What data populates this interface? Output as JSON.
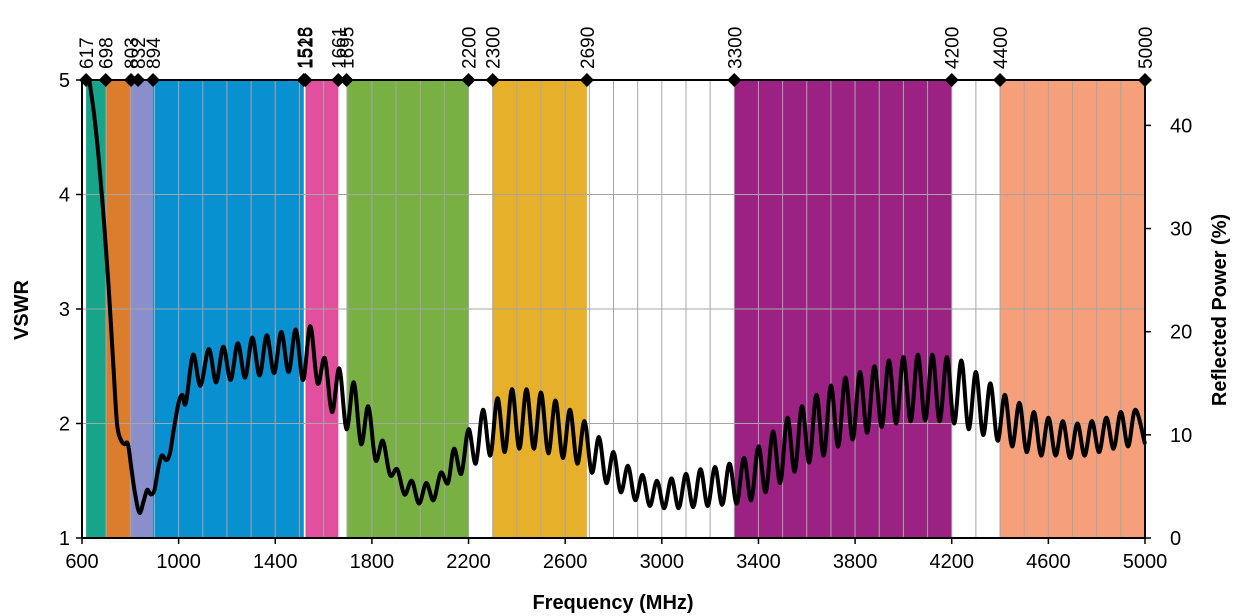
{
  "chart_data": {
    "type": "line",
    "title": "",
    "xlabel": "Frequency (MHz)",
    "ylabel": "VSWR",
    "y2label": "Reflected Power (%)",
    "xlim": [
      600,
      5000
    ],
    "ylim": [
      1,
      5
    ],
    "y2lim": [
      0,
      44.4
    ],
    "grid": true,
    "x_ticks": [
      600,
      1000,
      1400,
      1800,
      2200,
      2600,
      3000,
      3400,
      3800,
      4200,
      4600,
      5000
    ],
    "y_ticks": [
      1,
      2,
      3,
      4,
      5
    ],
    "y2_ticks": [
      0,
      10,
      20,
      30,
      40
    ],
    "top_markers": [
      617,
      698,
      803,
      832,
      894,
      1518,
      1525,
      1661,
      1695,
      2200,
      2300,
      2690,
      3300,
      4200,
      4400,
      5000
    ],
    "bands": [
      {
        "from": 617,
        "to": 698,
        "color": "#16A58A"
      },
      {
        "from": 698,
        "to": 803,
        "color": "#DC7D2E"
      },
      {
        "from": 803,
        "to": 894,
        "color": "#8A8ECA"
      },
      {
        "from": 894,
        "to": 1518,
        "color": "#0890D0"
      },
      {
        "from": 1525,
        "to": 1661,
        "color": "#E24F9C"
      },
      {
        "from": 1695,
        "to": 2200,
        "color": "#78B043"
      },
      {
        "from": 2300,
        "to": 2690,
        "color": "#E7B02A"
      },
      {
        "from": 3300,
        "to": 4200,
        "color": "#9B2183"
      },
      {
        "from": 4400,
        "to": 5000,
        "color": "#F5A07B"
      }
    ],
    "series": [
      {
        "color": "#000000",
        "points": [
          [
            630,
            5.0
          ],
          [
            650,
            4.7
          ],
          [
            670,
            4.3
          ],
          [
            690,
            3.8
          ],
          [
            710,
            3.2
          ],
          [
            730,
            2.5
          ],
          [
            745,
            2.0
          ],
          [
            760,
            1.86
          ],
          [
            775,
            1.82
          ],
          [
            790,
            1.82
          ],
          [
            805,
            1.6
          ],
          [
            820,
            1.38
          ],
          [
            838,
            1.22
          ],
          [
            855,
            1.32
          ],
          [
            870,
            1.42
          ],
          [
            885,
            1.38
          ],
          [
            900,
            1.42
          ],
          [
            915,
            1.6
          ],
          [
            930,
            1.72
          ],
          [
            950,
            1.68
          ],
          [
            965,
            1.75
          ],
          [
            980,
            1.95
          ],
          [
            1000,
            2.18
          ],
          [
            1015,
            2.25
          ],
          [
            1030,
            2.18
          ],
          [
            1060,
            2.6
          ],
          [
            1090,
            2.33
          ],
          [
            1125,
            2.65
          ],
          [
            1155,
            2.36
          ],
          [
            1185,
            2.67
          ],
          [
            1215,
            2.38
          ],
          [
            1245,
            2.7
          ],
          [
            1275,
            2.4
          ],
          [
            1305,
            2.75
          ],
          [
            1335,
            2.42
          ],
          [
            1365,
            2.77
          ],
          [
            1395,
            2.44
          ],
          [
            1425,
            2.8
          ],
          [
            1455,
            2.45
          ],
          [
            1485,
            2.82
          ],
          [
            1515,
            2.38
          ],
          [
            1545,
            2.85
          ],
          [
            1575,
            2.35
          ],
          [
            1605,
            2.57
          ],
          [
            1635,
            2.1
          ],
          [
            1665,
            2.48
          ],
          [
            1695,
            1.95
          ],
          [
            1725,
            2.36
          ],
          [
            1755,
            1.82
          ],
          [
            1785,
            2.15
          ],
          [
            1815,
            1.68
          ],
          [
            1845,
            1.85
          ],
          [
            1875,
            1.55
          ],
          [
            1905,
            1.6
          ],
          [
            1935,
            1.38
          ],
          [
            1965,
            1.5
          ],
          [
            1995,
            1.3
          ],
          [
            2025,
            1.48
          ],
          [
            2055,
            1.33
          ],
          [
            2085,
            1.57
          ],
          [
            2115,
            1.48
          ],
          [
            2140,
            1.78
          ],
          [
            2170,
            1.56
          ],
          [
            2200,
            1.95
          ],
          [
            2230,
            1.65
          ],
          [
            2260,
            2.12
          ],
          [
            2290,
            1.72
          ],
          [
            2320,
            2.22
          ],
          [
            2350,
            1.75
          ],
          [
            2380,
            2.3
          ],
          [
            2410,
            1.78
          ],
          [
            2440,
            2.3
          ],
          [
            2470,
            1.78
          ],
          [
            2500,
            2.27
          ],
          [
            2530,
            1.74
          ],
          [
            2560,
            2.2
          ],
          [
            2590,
            1.7
          ],
          [
            2620,
            2.12
          ],
          [
            2650,
            1.65
          ],
          [
            2680,
            2.02
          ],
          [
            2710,
            1.57
          ],
          [
            2740,
            1.88
          ],
          [
            2770,
            1.48
          ],
          [
            2800,
            1.75
          ],
          [
            2830,
            1.4
          ],
          [
            2860,
            1.63
          ],
          [
            2890,
            1.33
          ],
          [
            2920,
            1.55
          ],
          [
            2950,
            1.28
          ],
          [
            2980,
            1.5
          ],
          [
            3010,
            1.26
          ],
          [
            3040,
            1.52
          ],
          [
            3070,
            1.26
          ],
          [
            3100,
            1.56
          ],
          [
            3130,
            1.27
          ],
          [
            3160,
            1.6
          ],
          [
            3190,
            1.28
          ],
          [
            3220,
            1.62
          ],
          [
            3250,
            1.29
          ],
          [
            3280,
            1.65
          ],
          [
            3310,
            1.3
          ],
          [
            3340,
            1.7
          ],
          [
            3370,
            1.33
          ],
          [
            3400,
            1.8
          ],
          [
            3430,
            1.4
          ],
          [
            3460,
            1.93
          ],
          [
            3490,
            1.48
          ],
          [
            3520,
            2.05
          ],
          [
            3550,
            1.58
          ],
          [
            3580,
            2.15
          ],
          [
            3610,
            1.66
          ],
          [
            3640,
            2.25
          ],
          [
            3670,
            1.72
          ],
          [
            3700,
            2.33
          ],
          [
            3730,
            1.8
          ],
          [
            3760,
            2.4
          ],
          [
            3790,
            1.86
          ],
          [
            3820,
            2.45
          ],
          [
            3850,
            1.92
          ],
          [
            3880,
            2.5
          ],
          [
            3910,
            1.97
          ],
          [
            3940,
            2.55
          ],
          [
            3970,
            2.0
          ],
          [
            4000,
            2.58
          ],
          [
            4030,
            2.02
          ],
          [
            4060,
            2.6
          ],
          [
            4090,
            2.03
          ],
          [
            4120,
            2.6
          ],
          [
            4150,
            2.02
          ],
          [
            4180,
            2.58
          ],
          [
            4210,
            2.0
          ],
          [
            4240,
            2.55
          ],
          [
            4270,
            1.95
          ],
          [
            4300,
            2.45
          ],
          [
            4330,
            1.9
          ],
          [
            4360,
            2.35
          ],
          [
            4390,
            1.85
          ],
          [
            4420,
            2.25
          ],
          [
            4450,
            1.8
          ],
          [
            4480,
            2.18
          ],
          [
            4510,
            1.75
          ],
          [
            4540,
            2.1
          ],
          [
            4570,
            1.72
          ],
          [
            4600,
            2.05
          ],
          [
            4630,
            1.72
          ],
          [
            4660,
            2.02
          ],
          [
            4690,
            1.7
          ],
          [
            4720,
            2.0
          ],
          [
            4750,
            1.72
          ],
          [
            4780,
            2.02
          ],
          [
            4810,
            1.75
          ],
          [
            4840,
            2.05
          ],
          [
            4870,
            1.78
          ],
          [
            4900,
            2.1
          ],
          [
            4930,
            1.8
          ],
          [
            4960,
            2.12
          ],
          [
            5000,
            1.82
          ]
        ]
      }
    ]
  }
}
